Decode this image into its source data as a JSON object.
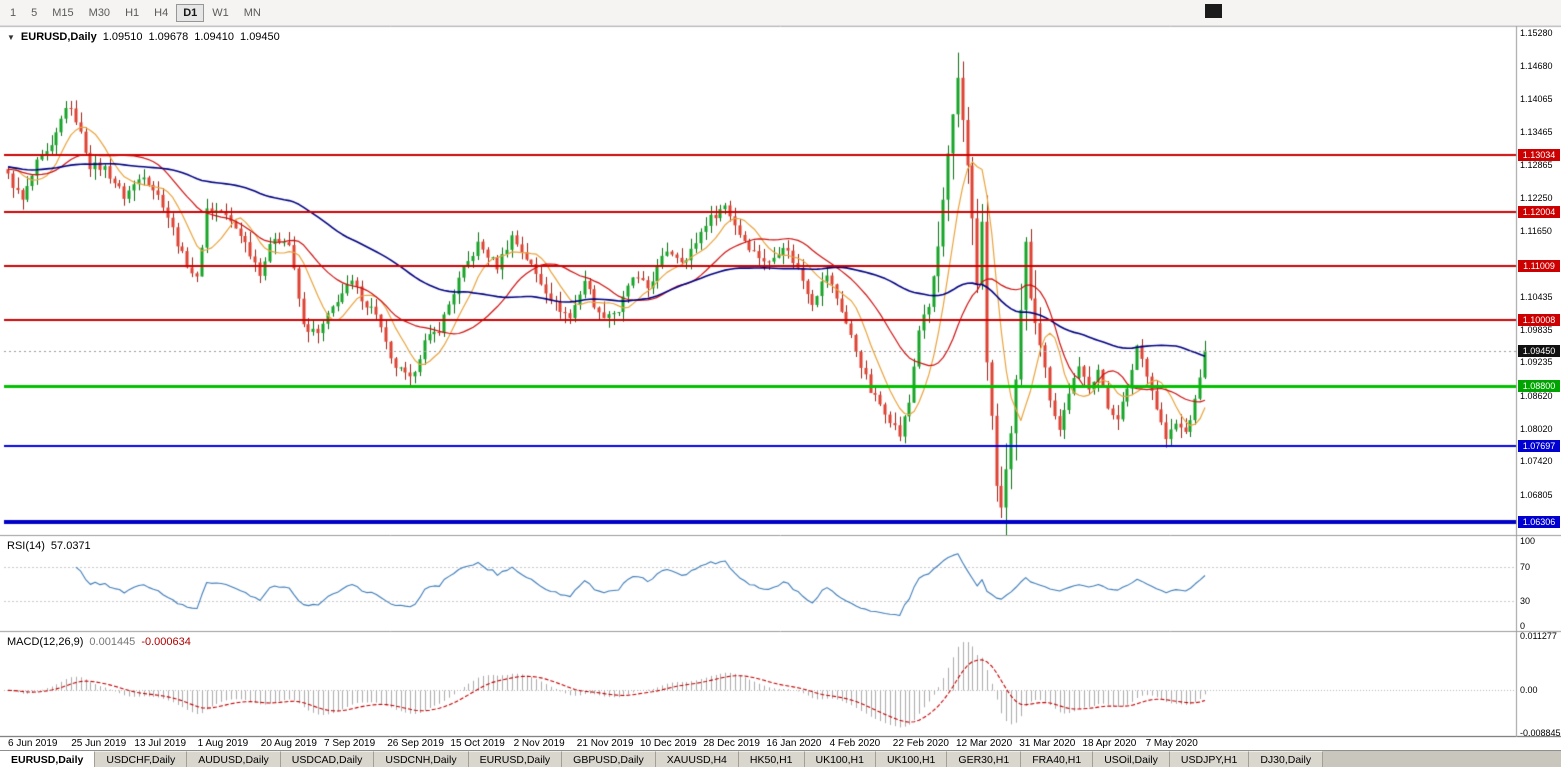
{
  "toolbar": {
    "timeframes": [
      {
        "label": "1",
        "active": false
      },
      {
        "label": "5",
        "active": false
      },
      {
        "label": "M15",
        "active": false
      },
      {
        "label": "M30",
        "active": false
      },
      {
        "label": "H1",
        "active": false
      },
      {
        "label": "H4",
        "active": false
      },
      {
        "label": "D1",
        "active": true
      },
      {
        "label": "W1",
        "active": false
      },
      {
        "label": "MN",
        "active": false
      }
    ]
  },
  "chart": {
    "title": {
      "collapse_icon": "▼",
      "symbol": "EURUSD,Daily",
      "open": "1.09510",
      "high": "1.09678",
      "low": "1.09410",
      "close": "1.09450"
    },
    "price_axis": {
      "ticks": [
        {
          "label": "1.15280",
          "value": 1.1528
        },
        {
          "label": "1.14680",
          "value": 1.1468
        },
        {
          "label": "1.14065",
          "value": 1.14065
        },
        {
          "label": "1.13465",
          "value": 1.13465
        },
        {
          "label": "1.12865",
          "value": 1.12865
        },
        {
          "label": "1.12250",
          "value": 1.1225
        },
        {
          "label": "1.11650",
          "value": 1.1165
        },
        {
          "label": "1.10435",
          "value": 1.10435
        },
        {
          "label": "1.09835",
          "value": 1.09835
        },
        {
          "label": "1.09235",
          "value": 1.09235
        },
        {
          "label": "1.08620",
          "value": 1.0862
        },
        {
          "label": "1.08020",
          "value": 1.0802
        },
        {
          "label": "1.07420",
          "value": 1.0742
        },
        {
          "label": "1.06805",
          "value": 1.06805
        }
      ],
      "badges": [
        {
          "label": "1.13034",
          "value": 1.13034,
          "bg": "#CC0000"
        },
        {
          "label": "1.12004",
          "value": 1.12004,
          "bg": "#CC0000"
        },
        {
          "label": "1.11009",
          "value": 1.11009,
          "bg": "#CC0000"
        },
        {
          "label": "1.10008",
          "value": 1.10008,
          "bg": "#CC0000"
        },
        {
          "label": "1.09450",
          "value": 1.0945,
          "bg": "#101010"
        },
        {
          "label": "1.08800",
          "value": 1.088,
          "bg": "#00A400"
        },
        {
          "label": "1.07697",
          "value": 1.07697,
          "bg": "#0000D0"
        },
        {
          "label": "1.06306",
          "value": 1.06306,
          "bg": "#0000D0"
        }
      ]
    },
    "hlines": [
      {
        "value": 1.13034,
        "color": "#CC0000",
        "width": 2
      },
      {
        "value": 1.12004,
        "color": "#CC0000",
        "width": 2
      },
      {
        "value": 1.11009,
        "color": "#CC0000",
        "width": 2
      },
      {
        "value": 1.10008,
        "color": "#CC0000",
        "width": 2
      },
      {
        "value": 1.088,
        "color": "#00C000",
        "width": 3
      },
      {
        "value": 1.07697,
        "color": "#0000E6",
        "width": 2
      },
      {
        "value": 1.06306,
        "color": "#0000C8",
        "width": 4
      }
    ],
    "time_axis": [
      "6 Jun 2019",
      "25 Jun 2019",
      "13 Jul 2019",
      "1 Aug 2019",
      "20 Aug 2019",
      "7 Sep 2019",
      "26 Sep 2019",
      "15 Oct 2019",
      "2 Nov 2019",
      "21 Nov 2019",
      "10 Dec 2019",
      "28 Dec 2019",
      "16 Jan 2020",
      "4 Feb 2020",
      "22 Feb 2020",
      "12 Mar 2020",
      "31 Mar 2020",
      "18 Apr 2020",
      "7 May 2020"
    ]
  },
  "indicators": {
    "rsi": {
      "label": "RSI(14)",
      "value": "57.0371",
      "color": "#3E7CB8",
      "levels": [
        {
          "label": "100",
          "value": 100
        },
        {
          "label": "70",
          "value": 70
        },
        {
          "label": "30",
          "value": 30
        },
        {
          "label": "0",
          "value": 0
        }
      ],
      "dotted_levels": [
        70,
        30
      ]
    },
    "macd": {
      "label": "MACD(12,26,9)",
      "value_main": "0.001445",
      "value_signal": "-0.000634",
      "histogram_color": "#ABABAB",
      "signal_color": "#C00000",
      "scale": {
        "max": 0.011277,
        "min": -0.008845
      },
      "levels": [
        {
          "label": "0.011277",
          "value": 0.011277
        },
        {
          "label": "0.00",
          "value": 0
        },
        {
          "label": "-0.008845",
          "value": -0.008845
        }
      ]
    }
  },
  "tabs": [
    {
      "label": "EURUSD,Daily",
      "active": true
    },
    {
      "label": "USDCHF,Daily",
      "active": false
    },
    {
      "label": "AUDUSD,Daily",
      "active": false
    },
    {
      "label": "USDCAD,Daily",
      "active": false
    },
    {
      "label": "USDCNH,Daily",
      "active": false
    },
    {
      "label": "EURUSD,Daily",
      "active": false
    },
    {
      "label": "GBPUSD,Daily",
      "active": false
    },
    {
      "label": "XAUUSD,H4",
      "active": false
    },
    {
      "label": "HK50,H1",
      "active": false
    },
    {
      "label": "UK100,H1",
      "active": false
    },
    {
      "label": "UK100,H1",
      "active": false
    },
    {
      "label": "GER30,H1",
      "active": false
    },
    {
      "label": "FRA40,H1",
      "active": false
    },
    {
      "label": "USOil,Daily",
      "active": false
    },
    {
      "label": "USDJPY,H1",
      "active": false
    },
    {
      "label": "DJ30,Daily",
      "active": false
    }
  ],
  "chart_data": {
    "type": "candlestick",
    "symbol": "EURUSD",
    "timeframe": "Daily",
    "ohlc_current": {
      "open": 1.0951,
      "high": 1.09678,
      "low": 1.0941,
      "close": 1.0945
    },
    "n_candles": 248,
    "last_close": 1.0945,
    "price_scale": {
      "min": 1.06105,
      "max": 1.15408
    },
    "x_range": [
      "6 Jun 2019",
      "20 May 2020"
    ],
    "key_levels": [
      1.13034,
      1.12004,
      1.11009,
      1.10008,
      1.088,
      1.07697,
      1.06306
    ],
    "close_anchors": [
      [
        0,
        1.1265
      ],
      [
        3,
        1.122
      ],
      [
        6,
        1.1288
      ],
      [
        9,
        1.1315
      ],
      [
        12,
        1.1395
      ],
      [
        14,
        1.137
      ],
      [
        17,
        1.1285
      ],
      [
        20,
        1.128
      ],
      [
        24,
        1.1228
      ],
      [
        28,
        1.127
      ],
      [
        32,
        1.1215
      ],
      [
        36,
        1.112
      ],
      [
        39,
        1.1075
      ],
      [
        41,
        1.1205
      ],
      [
        44,
        1.12
      ],
      [
        48,
        1.116
      ],
      [
        52,
        1.109
      ],
      [
        55,
        1.1155
      ],
      [
        58,
        1.114
      ],
      [
        61,
        1.099
      ],
      [
        64,
        1.0975
      ],
      [
        68,
        1.104
      ],
      [
        71,
        1.107
      ],
      [
        74,
        1.103
      ],
      [
        76,
        1.1015
      ],
      [
        79,
        1.0925
      ],
      [
        83,
        1.089
      ],
      [
        86,
        1.096
      ],
      [
        89,
        1.0985
      ],
      [
        93,
        1.1075
      ],
      [
        97,
        1.114
      ],
      [
        101,
        1.11
      ],
      [
        104,
        1.1155
      ],
      [
        107,
        1.1115
      ],
      [
        110,
        1.107
      ],
      [
        113,
        1.103
      ],
      [
        116,
        1.1005
      ],
      [
        119,
        1.1075
      ],
      [
        122,
        1.101
      ],
      [
        126,
        1.1018
      ],
      [
        129,
        1.108
      ],
      [
        132,
        1.106
      ],
      [
        136,
        1.113
      ],
      [
        140,
        1.111
      ],
      [
        144,
        1.118
      ],
      [
        148,
        1.1212
      ],
      [
        151,
        1.116
      ],
      [
        154,
        1.1125
      ],
      [
        157,
        1.1105
      ],
      [
        160,
        1.114
      ],
      [
        163,
        1.1095
      ],
      [
        166,
        1.1035
      ],
      [
        169,
        1.1085
      ],
      [
        172,
        1.102
      ],
      [
        175,
        1.0945
      ],
      [
        178,
        1.087
      ],
      [
        181,
        1.0835
      ],
      [
        184,
        1.079
      ],
      [
        186,
        1.085
      ],
      [
        188,
        1.0985
      ],
      [
        190,
        1.1025
      ],
      [
        192,
        1.1135
      ],
      [
        194,
        1.13
      ],
      [
        196,
        1.1445
      ],
      [
        197,
        1.137
      ],
      [
        198,
        1.129
      ],
      [
        199,
        1.1184
      ],
      [
        200,
        1.1065
      ],
      [
        201,
        1.118
      ],
      [
        202,
        1.092
      ],
      [
        203,
        1.083
      ],
      [
        204,
        1.069
      ],
      [
        205,
        1.066
      ],
      [
        206,
        1.0727
      ],
      [
        207,
        1.079
      ],
      [
        208,
        1.0885
      ],
      [
        209,
        1.1015
      ],
      [
        210,
        1.114
      ],
      [
        211,
        1.1045
      ],
      [
        213,
        1.096
      ],
      [
        215,
        1.086
      ],
      [
        217,
        1.08
      ],
      [
        219,
        1.087
      ],
      [
        221,
        1.091
      ],
      [
        223,
        1.088
      ],
      [
        225,
        1.091
      ],
      [
        227,
        1.084
      ],
      [
        229,
        1.0825
      ],
      [
        231,
        1.087
      ],
      [
        233,
        1.0955
      ],
      [
        235,
        1.0905
      ],
      [
        237,
        1.084
      ],
      [
        239,
        1.0783
      ],
      [
        241,
        1.081
      ],
      [
        243,
        1.0795
      ],
      [
        245,
        1.085
      ],
      [
        246,
        1.09
      ],
      [
        247,
        1.0945
      ]
    ],
    "volatile_range": [
      192,
      214
    ],
    "moving_averages": [
      {
        "period": 8,
        "color": "#E8A33D"
      },
      {
        "period": 21,
        "color": "#CC1111"
      },
      {
        "period": 55,
        "color": "#000080"
      }
    ],
    "colors": {
      "bull": "#18A428",
      "bull_border": "#0B7014",
      "bear": "#DE4233",
      "bear_border": "#9A2317",
      "current_price_line": "#9a9a9a"
    }
  }
}
